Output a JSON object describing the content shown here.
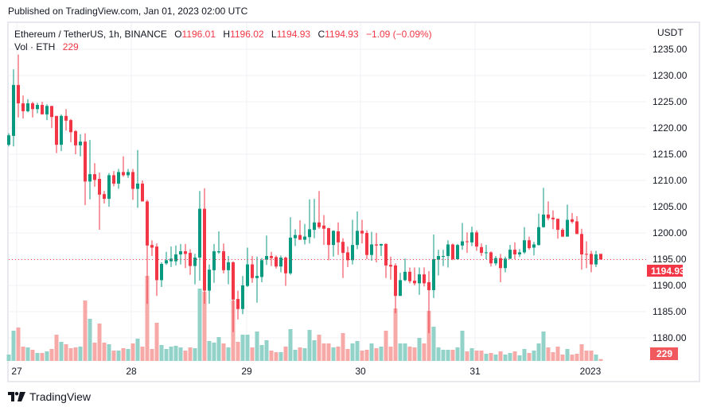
{
  "published": "Published on TradingView.com, Jan 01, 2023 02:00 UTC",
  "legend": {
    "symbol": "Ethereum / TetherUS, 1h, BINANCE",
    "o_label": "O",
    "o": "1196.01",
    "h_label": "H",
    "h": "1196.02",
    "l_label": "L",
    "l": "1194.93",
    "c_label": "C",
    "c": "1194.93",
    "change": "−1.09 (−0.09%)",
    "vol_label": "Vol · ETH",
    "vol": "229"
  },
  "price_axis": {
    "currency": "USDT",
    "labels": [
      "1235.00",
      "1230.00",
      "1225.00",
      "1220.00",
      "1215.00",
      "1210.00",
      "1205.00",
      "1200.00",
      "1195.00",
      "1190.00",
      "1185.00",
      "1180.00"
    ],
    "current_price": "1194.93",
    "current_volume": "229"
  },
  "time_axis": [
    "27",
    "28",
    "29",
    "30",
    "31",
    "2023"
  ],
  "footer": {
    "brand": "TradingView"
  },
  "colors": {
    "up": "#089981",
    "down": "#f23645",
    "up_vol": "#92d2c8",
    "down_vol": "#f7a9a8",
    "grid": "#f0f1f4"
  },
  "chart_data": {
    "type": "candlestick",
    "title": "Ethereum / TetherUS, 1h, BINANCE",
    "ylabel": "USDT",
    "ylim": [
      1177,
      1236
    ],
    "y_ticks": [
      1235,
      1230,
      1225,
      1220,
      1215,
      1210,
      1205,
      1200,
      1195,
      1190,
      1185,
      1180
    ],
    "x_ticks": [
      "27",
      "28",
      "29",
      "30",
      "31",
      "2023"
    ],
    "current_price": 1194.93,
    "fields": [
      "open",
      "high",
      "low",
      "close",
      "volume"
    ],
    "candles": [
      [
        1216.8,
        1219,
        1216.5,
        1218.6,
        800
      ],
      [
        1218.5,
        1231.2,
        1216.5,
        1228.2,
        3800
      ],
      [
        1228.2,
        1234,
        1222,
        1224.7,
        4200
      ],
      [
        1224.7,
        1226.2,
        1221.8,
        1223.2,
        1800
      ],
      [
        1223.2,
        1225.5,
        1223,
        1224.7,
        1700
      ],
      [
        1224.7,
        1225,
        1222,
        1223.6,
        1400
      ],
      [
        1223.6,
        1224.8,
        1222.8,
        1224.4,
        1000
      ],
      [
        1224.4,
        1225,
        1222.6,
        1222.6,
        1000
      ],
      [
        1222.6,
        1224.5,
        1221.5,
        1224.2,
        1200
      ],
      [
        1224.2,
        1224.2,
        1220,
        1222.1,
        1500
      ],
      [
        1222.3,
        1222.3,
        1215.2,
        1216.8,
        3300
      ],
      [
        1216.8,
        1222.6,
        1215.6,
        1222.3,
        2400
      ],
      [
        1222.3,
        1223.6,
        1219.5,
        1221.4,
        2100
      ],
      [
        1221.5,
        1221.7,
        1217.3,
        1219.2,
        1600
      ],
      [
        1219.4,
        1219.6,
        1215,
        1216.7,
        1700
      ],
      [
        1216.7,
        1218.8,
        1214.6,
        1217.4,
        1800
      ],
      [
        1217.4,
        1219,
        1205.3,
        1209.8,
        7600
      ],
      [
        1209.8,
        1217.7,
        1206.4,
        1211.2,
        5300
      ],
      [
        1211.2,
        1213.3,
        1208.8,
        1210.1,
        2300
      ],
      [
        1210.3,
        1211.5,
        1200.6,
        1207.3,
        4700
      ],
      [
        1207.4,
        1208,
        1205.6,
        1206.5,
        2300
      ],
      [
        1206.5,
        1211.4,
        1205,
        1211,
        2100
      ],
      [
        1211,
        1211.8,
        1208.9,
        1209.4,
        1300
      ],
      [
        1209.4,
        1212.2,
        1208.4,
        1211.6,
        1300
      ],
      [
        1211.6,
        1214.6,
        1210.7,
        1211,
        1600
      ],
      [
        1211,
        1212.2,
        1210.5,
        1211.6,
        1500
      ],
      [
        1211.6,
        1212.2,
        1206.3,
        1208.4,
        2200
      ],
      [
        1208.4,
        1215.8,
        1204.8,
        1209.4,
        2800
      ],
      [
        1209.4,
        1210,
        1206,
        1206,
        1800
      ],
      [
        1206,
        1206.3,
        1186.5,
        1197.6,
        10700
      ],
      [
        1197.7,
        1198.6,
        1195.6,
        1197.2,
        1500
      ],
      [
        1197.4,
        1198,
        1188,
        1191,
        4800
      ],
      [
        1191,
        1194.4,
        1189.7,
        1194.1,
        2000
      ],
      [
        1194.2,
        1196.4,
        1193.9,
        1194.8,
        1500
      ],
      [
        1194.6,
        1197.4,
        1193.5,
        1195.1,
        1800
      ],
      [
        1194.6,
        1197.6,
        1193.8,
        1195.9,
        1900
      ],
      [
        1195.9,
        1197.9,
        1194,
        1196.5,
        1700
      ],
      [
        1196.5,
        1197.9,
        1193.3,
        1196,
        1300
      ],
      [
        1196.2,
        1196.9,
        1192,
        1193.7,
        1700
      ],
      [
        1193.7,
        1196,
        1190.2,
        1195.3,
        1600
      ],
      [
        1195.3,
        1208,
        1190.9,
        1204.6,
        9100
      ],
      [
        1204.6,
        1208.5,
        1186.5,
        1189,
        8700
      ],
      [
        1189,
        1194,
        1186.5,
        1193,
        2500
      ],
      [
        1192.9,
        1197.9,
        1190.5,
        1196.5,
        2300
      ],
      [
        1196.3,
        1200.3,
        1196,
        1196.5,
        3000
      ],
      [
        1196.5,
        1198,
        1192.3,
        1192.9,
        2200
      ],
      [
        1192.9,
        1195.6,
        1190.2,
        1194.4,
        1700
      ],
      [
        1194.4,
        1194.6,
        1181.1,
        1187.3,
        7600
      ],
      [
        1187.4,
        1189,
        1183.5,
        1185.5,
        2400
      ],
      [
        1185.5,
        1191.8,
        1184.5,
        1190,
        3300
      ],
      [
        1189.9,
        1197.2,
        1189.7,
        1194,
        3300
      ],
      [
        1194,
        1195.6,
        1190.5,
        1191.4,
        1700
      ],
      [
        1191.4,
        1195.5,
        1186.7,
        1191.8,
        3700
      ],
      [
        1191.6,
        1195.2,
        1190.6,
        1194.8,
        2000
      ],
      [
        1194.9,
        1199.5,
        1193.9,
        1195.6,
        2600
      ],
      [
        1195.6,
        1196.4,
        1193.7,
        1195.2,
        1300
      ],
      [
        1195.4,
        1195.7,
        1193.2,
        1193.6,
        1100
      ],
      [
        1193.6,
        1195.7,
        1192.5,
        1195.3,
        1100
      ],
      [
        1195.3,
        1195.5,
        1189.9,
        1192.3,
        1800
      ],
      [
        1192.3,
        1203,
        1192,
        1199.1,
        4000
      ],
      [
        1199,
        1200.7,
        1197.5,
        1199.6,
        1400
      ],
      [
        1199.6,
        1202.4,
        1198.7,
        1198.7,
        1700
      ],
      [
        1198.7,
        1201.7,
        1197.8,
        1199.3,
        1600
      ],
      [
        1199.2,
        1206.4,
        1198,
        1200.7,
        3900
      ],
      [
        1200.6,
        1206.5,
        1199,
        1202,
        2600
      ],
      [
        1202,
        1208,
        1200.8,
        1201.1,
        3300
      ],
      [
        1201.4,
        1203.4,
        1197.7,
        1200.8,
        2200
      ],
      [
        1200.9,
        1201,
        1194.8,
        1197.7,
        2200
      ],
      [
        1197.7,
        1200.5,
        1195.5,
        1200.4,
        1700
      ],
      [
        1200.3,
        1202,
        1195.8,
        1198.2,
        1800
      ],
      [
        1198.3,
        1199,
        1191.4,
        1196.2,
        3500
      ],
      [
        1196.3,
        1197.4,
        1193.5,
        1194.8,
        1500
      ],
      [
        1194.8,
        1202.5,
        1194,
        1197.7,
        2200
      ],
      [
        1197.7,
        1204.1,
        1196.9,
        1200.4,
        2500
      ],
      [
        1200.4,
        1202.5,
        1198,
        1199.9,
        1300
      ],
      [
        1200,
        1200.5,
        1195,
        1195.8,
        1400
      ],
      [
        1195.8,
        1200.2,
        1194.7,
        1197.8,
        2200
      ],
      [
        1197.8,
        1200,
        1194.4,
        1197.6,
        1600
      ],
      [
        1197.6,
        1197.9,
        1195.6,
        1197.9,
        1800
      ],
      [
        1197.9,
        1198,
        1191.4,
        1193.8,
        3800
      ],
      [
        1193.9,
        1195.5,
        1191.1,
        1193.6,
        1800
      ],
      [
        1193.8,
        1194.2,
        1184.7,
        1188,
        6600
      ],
      [
        1188,
        1192.4,
        1188,
        1191,
        2200
      ],
      [
        1191,
        1195.1,
        1190.8,
        1192.6,
        2200
      ],
      [
        1192.6,
        1193.4,
        1190.4,
        1190.8,
        1800
      ],
      [
        1190.9,
        1193.4,
        1190,
        1190.4,
        1700
      ],
      [
        1190.4,
        1193.4,
        1188.2,
        1192.1,
        2900
      ],
      [
        1192.1,
        1193.4,
        1189.8,
        1190.4,
        2200
      ],
      [
        1190.6,
        1192.7,
        1180.9,
        1189.1,
        6300
      ],
      [
        1189.1,
        1199.7,
        1187.6,
        1195,
        4300
      ],
      [
        1194.9,
        1196.8,
        1191.9,
        1195.6,
        1700
      ],
      [
        1195.5,
        1196.8,
        1193.7,
        1195.6,
        1400
      ],
      [
        1195.6,
        1198.6,
        1193.4,
        1197.8,
        1400
      ],
      [
        1197.8,
        1198,
        1194.8,
        1195,
        1400
      ],
      [
        1195,
        1197.9,
        1194.9,
        1197.7,
        1700
      ],
      [
        1197.6,
        1201.9,
        1196.8,
        1198.4,
        3800
      ],
      [
        1198.4,
        1200.1,
        1196.2,
        1198.3,
        1200
      ],
      [
        1198.2,
        1201.2,
        1197.5,
        1200.1,
        1600
      ],
      [
        1200.1,
        1200.5,
        1196.6,
        1197.4,
        1300
      ],
      [
        1197.3,
        1198,
        1195.6,
        1196.2,
        1300
      ],
      [
        1196.2,
        1197.7,
        1195,
        1196.3,
        900
      ],
      [
        1196.3,
        1196.5,
        1193.6,
        1194.2,
        1000
      ],
      [
        1194.2,
        1195.6,
        1193.8,
        1195.2,
        800
      ],
      [
        1195.2,
        1196,
        1190.6,
        1193.3,
        1200
      ],
      [
        1193.3,
        1195.5,
        1192.5,
        1195.1,
        800
      ],
      [
        1195.1,
        1197.7,
        1195,
        1196.8,
        1000
      ],
      [
        1196.8,
        1198.2,
        1195,
        1195.9,
        1200
      ],
      [
        1195.9,
        1196.9,
        1195.4,
        1196.3,
        700
      ],
      [
        1196.3,
        1201.1,
        1196,
        1198.6,
        1500
      ],
      [
        1198.6,
        1199.3,
        1196.8,
        1197.1,
        1000
      ],
      [
        1197.2,
        1198.3,
        1195.7,
        1197.8,
        1300
      ],
      [
        1197.7,
        1203.7,
        1197.6,
        1201.1,
        2200
      ],
      [
        1201.1,
        1208.6,
        1201,
        1203.5,
        3700
      ],
      [
        1203.5,
        1206,
        1202.4,
        1202.8,
        1700
      ],
      [
        1202.9,
        1204.3,
        1200.7,
        1202.6,
        1100
      ],
      [
        1202.7,
        1202.7,
        1198.9,
        1200.6,
        1800
      ],
      [
        1200.6,
        1200.9,
        1199.2,
        1199.3,
        800
      ],
      [
        1199.3,
        1205.4,
        1199.3,
        1202.5,
        1500
      ],
      [
        1202.6,
        1203.8,
        1201.8,
        1202.1,
        800
      ],
      [
        1202.2,
        1203.2,
        1199.8,
        1199.8,
        900
      ],
      [
        1199.8,
        1200.8,
        1193,
        1195.9,
        2100
      ],
      [
        1196,
        1198.4,
        1193.3,
        1195.9,
        1300
      ],
      [
        1196,
        1196.6,
        1192.5,
        1194,
        1300
      ],
      [
        1194,
        1196.6,
        1193.5,
        1195.9,
        800
      ],
      [
        1196.01,
        1196.02,
        1194.93,
        1194.93,
        229
      ]
    ]
  }
}
